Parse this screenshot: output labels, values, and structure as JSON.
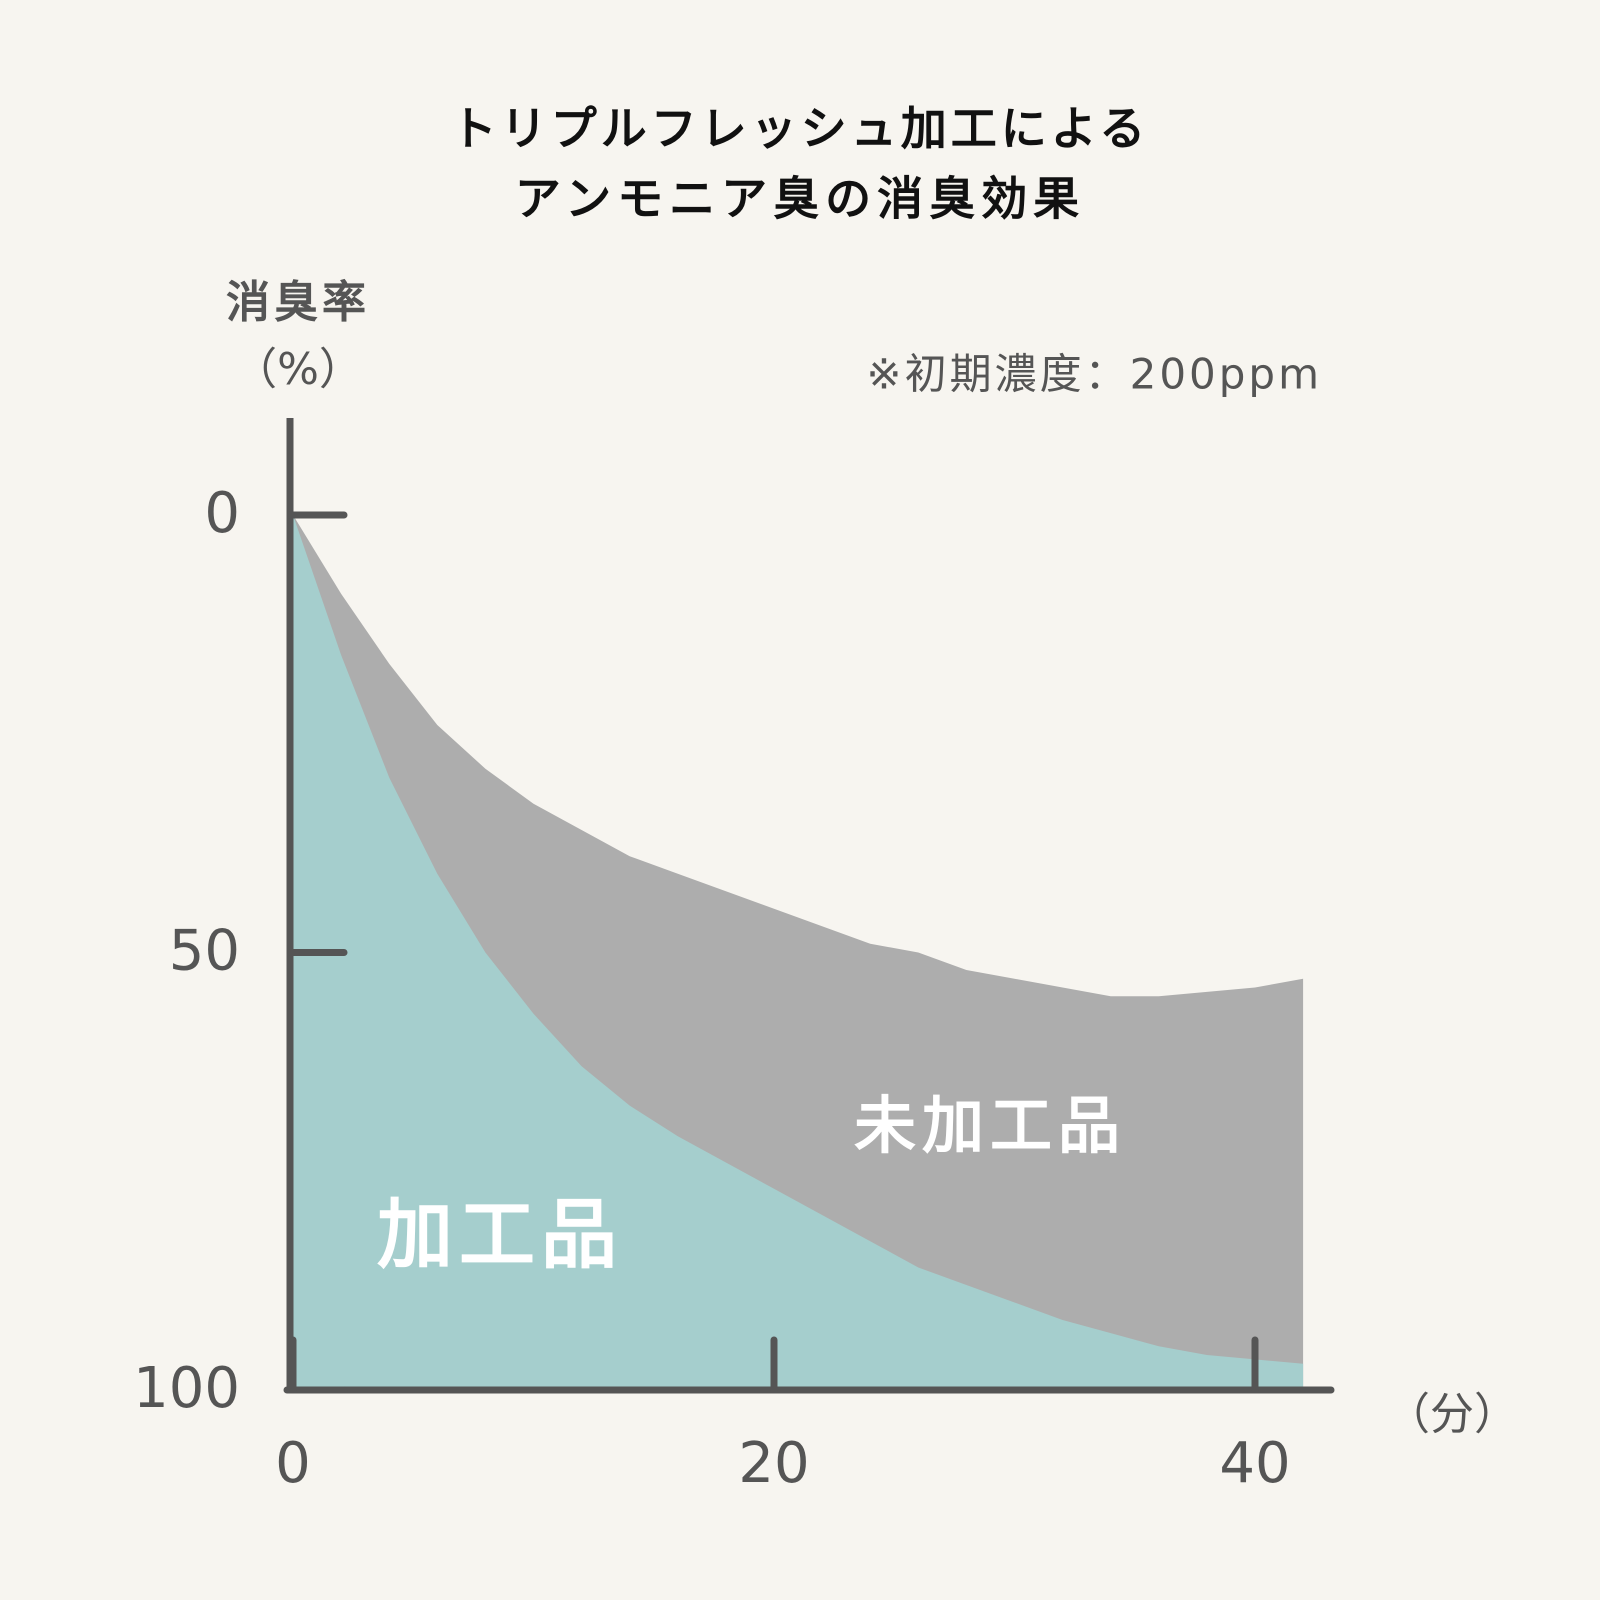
{
  "chart_data": {
    "type": "area",
    "title_lines": [
      "トリプルフレッシュ加工による",
      "アンモニア臭の消臭効果"
    ],
    "y_label_lines": [
      "消臭率",
      "（%）"
    ],
    "x_label": "（分）",
    "note": "※初期濃度：200ppm",
    "x": [
      0,
      2,
      4,
      6,
      8,
      10,
      12,
      14,
      16,
      18,
      20,
      22,
      24,
      26,
      28,
      30,
      32,
      34,
      36,
      38,
      40,
      42
    ],
    "series": [
      {
        "name": "未加工品",
        "color": "#adadad",
        "values": [
          0,
          9,
          17,
          24,
          29,
          33,
          36,
          39,
          41,
          43,
          45,
          47,
          49,
          50,
          52,
          53,
          54,
          55,
          55,
          54.5,
          54,
          53
        ]
      },
      {
        "name": "加工品",
        "color": "#a5cecd",
        "values": [
          0,
          16,
          30,
          41,
          50,
          57,
          63,
          67.5,
          71,
          74,
          77,
          80,
          83,
          86,
          88,
          90,
          92,
          93.5,
          95,
          96,
          96.5,
          97
        ]
      }
    ],
    "xlim": [
      0,
      43
    ],
    "xticks": [
      0,
      20,
      40
    ],
    "ylim": [
      0,
      100
    ],
    "yticks": [
      0,
      50,
      100
    ],
    "y_inverted": true
  }
}
